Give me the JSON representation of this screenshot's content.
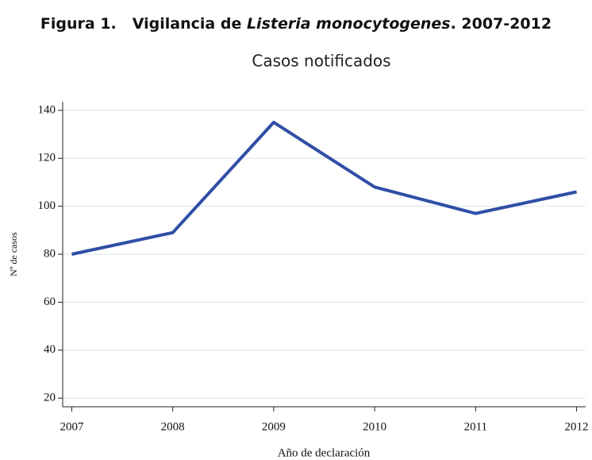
{
  "chart_data": {
    "type": "line",
    "figure_label": "Figura 1.",
    "title_parts": [
      "Vigilancia de ",
      "Listeria monocytogenes",
      ". 2007-2012"
    ],
    "subtitle": "Casos notificados",
    "x_label": "Año de declaración",
    "y_label": "Nº de casos",
    "x": [
      2007,
      2008,
      2009,
      2010,
      2011,
      2012
    ],
    "series": [
      {
        "name": "Casos",
        "color": "#2f4ea5",
        "values": [
          80,
          89,
          135,
          108,
          97,
          106
        ]
      }
    ],
    "xlim": [
      2006.91,
      2012.09
    ],
    "xticks": [
      2007,
      2008,
      2009,
      2010,
      2011,
      2012
    ],
    "ylim": [
      16.4,
      143.6
    ],
    "yticks": [
      20,
      40,
      60,
      80,
      100,
      120,
      140
    ],
    "grid": true
  }
}
